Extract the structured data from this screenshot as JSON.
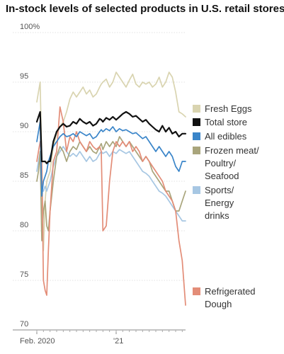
{
  "chart_data": {
    "type": "line",
    "title": "In-stock levels of selected products in U.S. retail stores",
    "ylim": [
      70,
      100
    ],
    "y_ticks": [
      {
        "value": 100,
        "label": "100%"
      },
      {
        "value": 95,
        "label": "95"
      },
      {
        "value": 90,
        "label": "90"
      },
      {
        "value": 85,
        "label": "85"
      },
      {
        "value": 80,
        "label": "80"
      },
      {
        "value": 75,
        "label": "75"
      },
      {
        "value": 70,
        "label": "70"
      }
    ],
    "x_ticks": [
      {
        "label": "Feb. 2020",
        "x": 0
      },
      {
        "label": "'21",
        "x": 48
      }
    ],
    "xlim": [
      0,
      90
    ],
    "x": [
      0,
      1,
      2,
      3,
      4,
      5,
      6,
      7,
      8,
      10,
      12,
      14,
      16,
      18,
      20,
      22,
      24,
      26,
      28,
      30,
      32,
      34,
      36,
      38,
      39,
      40,
      42,
      44,
      46,
      48,
      50,
      52,
      54,
      56,
      58,
      60,
      62,
      64,
      66,
      68,
      70,
      72,
      74,
      76,
      78,
      80,
      82,
      84,
      86,
      88,
      90
    ],
    "series": [
      {
        "name": "Fresh Eggs",
        "key": "fresh_eggs",
        "color": "#d9d4b0",
        "values": [
          93,
          94,
          95,
          87,
          78,
          83,
          85,
          85.5,
          86,
          88.5,
          89.8,
          90.5,
          91,
          92,
          93.3,
          94,
          93.5,
          94,
          94.5,
          93.8,
          94.2,
          93.5,
          93.8,
          94.5,
          94.8,
          95,
          95.3,
          94.5,
          95,
          96,
          95.5,
          95,
          94.5,
          95.2,
          95.8,
          94.8,
          94.5,
          95,
          94.8,
          95,
          94.5,
          94.8,
          95.5,
          94.5,
          95,
          96,
          95.5,
          94,
          92,
          91.8,
          91.5
        ]
      },
      {
        "name": "Total store",
        "key": "total_store",
        "color": "#111111",
        "values": [
          91,
          91.5,
          92,
          87,
          87,
          87,
          86.8,
          87,
          87,
          89,
          90,
          90.5,
          90.8,
          90.5,
          90.6,
          91,
          90.8,
          91.3,
          91,
          90.8,
          91,
          90.6,
          90.8,
          91.3,
          91.2,
          91,
          91.4,
          91.2,
          91.5,
          91.2,
          91.5,
          91.8,
          92,
          91.8,
          91.5,
          91.6,
          91.3,
          91,
          91.2,
          90.8,
          90.5,
          90.2,
          90,
          90.6,
          90,
          90.4,
          89.8,
          90,
          89.5,
          89.8,
          89.8
        ]
      },
      {
        "name": "All edibles",
        "key": "all_edibles",
        "color": "#3a85c9",
        "values": [
          89,
          90,
          91,
          83.5,
          85,
          85.5,
          86,
          87,
          87.5,
          88.5,
          89,
          89.5,
          89.8,
          89.5,
          89.6,
          89.8,
          89.5,
          90,
          89.8,
          89.6,
          89.8,
          89.3,
          89.5,
          90,
          90.2,
          90,
          90.3,
          90.1,
          90.5,
          90,
          90.3,
          90.1,
          90.2,
          90,
          89.8,
          89.9,
          89.6,
          89.3,
          89.5,
          89,
          88.5,
          88,
          88.5,
          88,
          87.5,
          88,
          87.5,
          86.5,
          86,
          87,
          87
        ]
      },
      {
        "name": "Frozen meat/\nPoultry/\nSeafood",
        "key": "frozen_meat",
        "color": "#a9a57c",
        "values": [
          85,
          86,
          88,
          79,
          82,
          83,
          80.5,
          80,
          82,
          85,
          87.5,
          88.5,
          88,
          87,
          88,
          88.5,
          88.2,
          89,
          88.5,
          88,
          88.5,
          88,
          87.8,
          88.5,
          88.8,
          88.2,
          89,
          88.5,
          89,
          88.5,
          89.5,
          89,
          88.5,
          89,
          88.5,
          88,
          87.5,
          87,
          87.5,
          87,
          86,
          85.5,
          85,
          84.5,
          84,
          84,
          83,
          82,
          82,
          83,
          84
        ]
      },
      {
        "name": "Sports/\nEnergy\ndrinks",
        "key": "sports_energy",
        "color": "#a7c7e3",
        "values": [
          86,
          87,
          88,
          84,
          84,
          84.5,
          84,
          84.5,
          85,
          86.5,
          87.5,
          88,
          88.5,
          88,
          87.5,
          87.8,
          87.5,
          88,
          87.5,
          87,
          87.5,
          87,
          87.2,
          87.8,
          88,
          87.8,
          88,
          87.5,
          88,
          87.8,
          88.2,
          88,
          87.8,
          88,
          87.5,
          87,
          86.5,
          86,
          85.8,
          85.5,
          85,
          84.5,
          84,
          83.8,
          83.5,
          83,
          82.5,
          82,
          81.5,
          81,
          81
        ]
      },
      {
        "name": "Refrigerated\nDough",
        "key": "refrigerated_dough",
        "color": "#e38d78",
        "values": [
          87,
          88,
          89,
          87,
          75,
          74,
          73.5,
          78,
          82,
          87,
          88,
          92.5,
          91,
          88,
          89.5,
          89,
          90,
          89,
          88.5,
          88,
          89,
          88.5,
          88.2,
          88.5,
          88,
          80,
          80.5,
          85,
          88,
          89,
          88.5,
          89,
          88.5,
          89,
          88,
          88.5,
          88,
          87,
          87.5,
          87,
          86.5,
          86,
          85.5,
          85,
          84,
          83.5,
          83,
          82,
          79,
          77,
          72.5
        ]
      }
    ]
  }
}
